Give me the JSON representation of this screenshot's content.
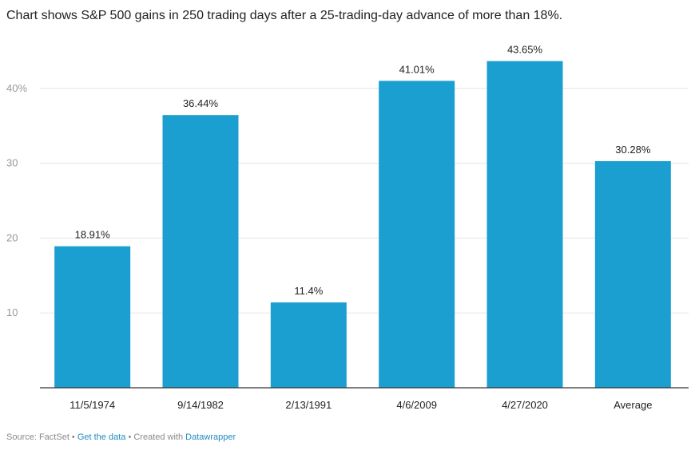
{
  "title": "Chart shows S&P 500 gains in 250 trading days after a 25-trading-day advance of more than 18%.",
  "footer": {
    "source": "Source: FactSet",
    "sep1": " • ",
    "get_data": "Get the data",
    "sep2": " • ",
    "created": "Created with ",
    "datawrapper": "Datawrapper"
  },
  "colors": {
    "bar": "#1b9fd0",
    "grid": "#e6e6e6",
    "axis": "#333333"
  },
  "chart_data": {
    "type": "bar",
    "categories": [
      "11/5/1974",
      "9/14/1982",
      "2/13/1991",
      "4/6/2009",
      "4/27/2020",
      "Average"
    ],
    "values": [
      18.91,
      36.44,
      11.4,
      41.01,
      43.65,
      30.28
    ],
    "value_labels": [
      "18.91%",
      "36.44%",
      "11.4%",
      "41.01%",
      "43.65%",
      "30.28%"
    ],
    "yticks": [
      10,
      20,
      30,
      40
    ],
    "ytick_labels": [
      "10",
      "20",
      "30",
      "40%"
    ],
    "ylim": [
      0,
      46.5
    ],
    "grid": true,
    "xlabel": "",
    "ylabel": ""
  }
}
